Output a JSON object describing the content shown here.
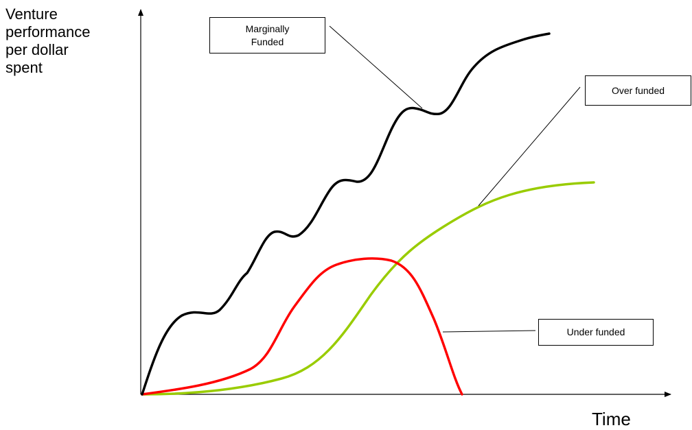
{
  "axes": {
    "y_label": "Venture\nperformance\nper dollar\nspent",
    "x_label": "Time"
  },
  "curves": [
    {
      "key": "marginal",
      "label": "Marginally\nFunded",
      "color": "#000000"
    },
    {
      "key": "over",
      "label": "Over funded",
      "color": "#99cc00"
    },
    {
      "key": "under",
      "label": "Under funded",
      "color": "#ff0000"
    }
  ]
}
